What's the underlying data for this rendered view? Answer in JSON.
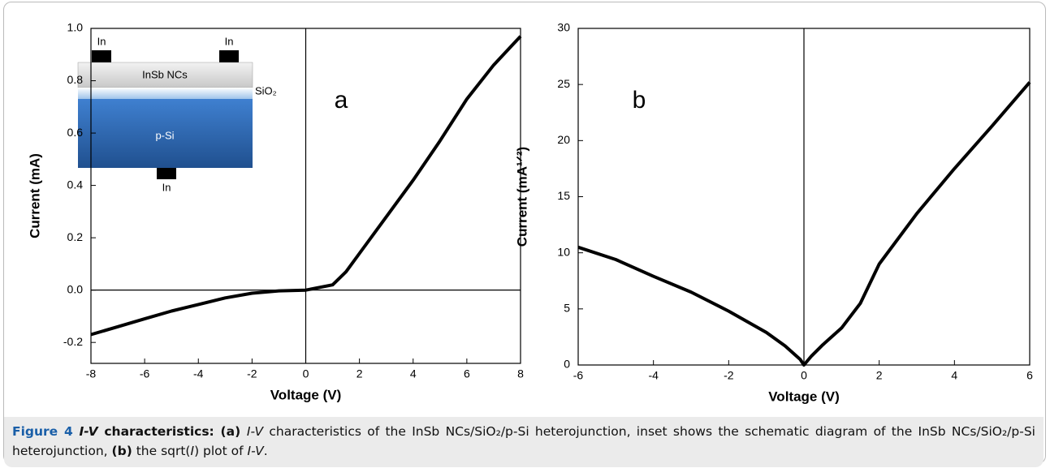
{
  "chart_data": [
    {
      "type": "line",
      "xlabel": "Voltage (V)",
      "ylabel": "Current (mA)",
      "annotation": "a",
      "color": "#000000",
      "x": [
        -8,
        -7,
        -6,
        -5,
        -4,
        -3,
        -2,
        -1,
        0,
        1,
        1.5,
        2,
        3,
        4,
        5,
        6,
        7,
        8
      ],
      "values": [
        -0.17,
        -0.14,
        -0.11,
        -0.08,
        -0.055,
        -0.03,
        -0.012,
        -0.003,
        0,
        0.02,
        0.07,
        0.14,
        0.28,
        0.42,
        0.57,
        0.73,
        0.86,
        0.97
      ],
      "xlim": [
        -8,
        8
      ],
      "ylim": [
        -0.28,
        1.0
      ],
      "xticks": [
        -8,
        -6,
        -4,
        -2,
        0,
        2,
        4,
        6,
        8
      ],
      "yticks": [
        {
          "value": -0.2,
          "label": "-0.2"
        },
        {
          "value": 0,
          "label": "0.0"
        },
        0.2,
        0.4,
        0.6,
        0.8,
        {
          "value": 1,
          "label": "1.0"
        }
      ],
      "zero_lines": true,
      "inset": {
        "top_left_contact": "In",
        "top_right_contact": "In",
        "layer_top": "InSb NCs",
        "layer_middle": "SiO₂",
        "layer_bottom": "p-Si",
        "bottom_contact": "In"
      }
    },
    {
      "type": "line",
      "xlabel": "Voltage (V)",
      "ylabel": "Current (mA¹ᐟ²)",
      "annotation": "b",
      "color": "#000000",
      "x": [
        -6,
        -5,
        -4,
        -3,
        -2,
        -1,
        -0.5,
        -0.1,
        0,
        0.2,
        0.5,
        1,
        1.5,
        2,
        3,
        4,
        5,
        6
      ],
      "values": [
        10.5,
        9.4,
        7.9,
        6.5,
        4.8,
        2.9,
        1.7,
        0.5,
        0,
        0.8,
        1.8,
        3.3,
        5.5,
        9,
        13.5,
        17.5,
        21.3,
        25.2
      ],
      "xlim": [
        -6,
        6
      ],
      "ylim": [
        0,
        30
      ],
      "xticks": [
        -6,
        -4,
        -2,
        0,
        2,
        4,
        6
      ],
      "yticks": [
        0,
        5,
        10,
        15,
        20,
        25,
        30
      ],
      "zero_lines": true
    }
  ],
  "caption": [
    {
      "text": "Figure 4 ",
      "style": "bold",
      "color": "#1a5fa8"
    },
    {
      "text": "I-V",
      "style": "bold-italic"
    },
    {
      "text": " characteristics: ",
      "style": "bold"
    },
    {
      "text": "(a) ",
      "style": "bold"
    },
    {
      "text": "I-V",
      "style": "italic"
    },
    {
      "text": " characteristics of the InSb NCs/SiO₂/p-Si heterojunction, inset shows the schematic diagram of the InSb NCs/SiO₂/p-Si heterojunction, ",
      "style": "normal"
    },
    {
      "text": "(b)",
      "style": "bold"
    },
    {
      "text": " the sqrt(",
      "style": "normal"
    },
    {
      "text": "I",
      "style": "italic"
    },
    {
      "text": ") plot of ",
      "style": "normal"
    },
    {
      "text": "I-V",
      "style": "italic"
    },
    {
      "text": ".",
      "style": "normal"
    }
  ]
}
